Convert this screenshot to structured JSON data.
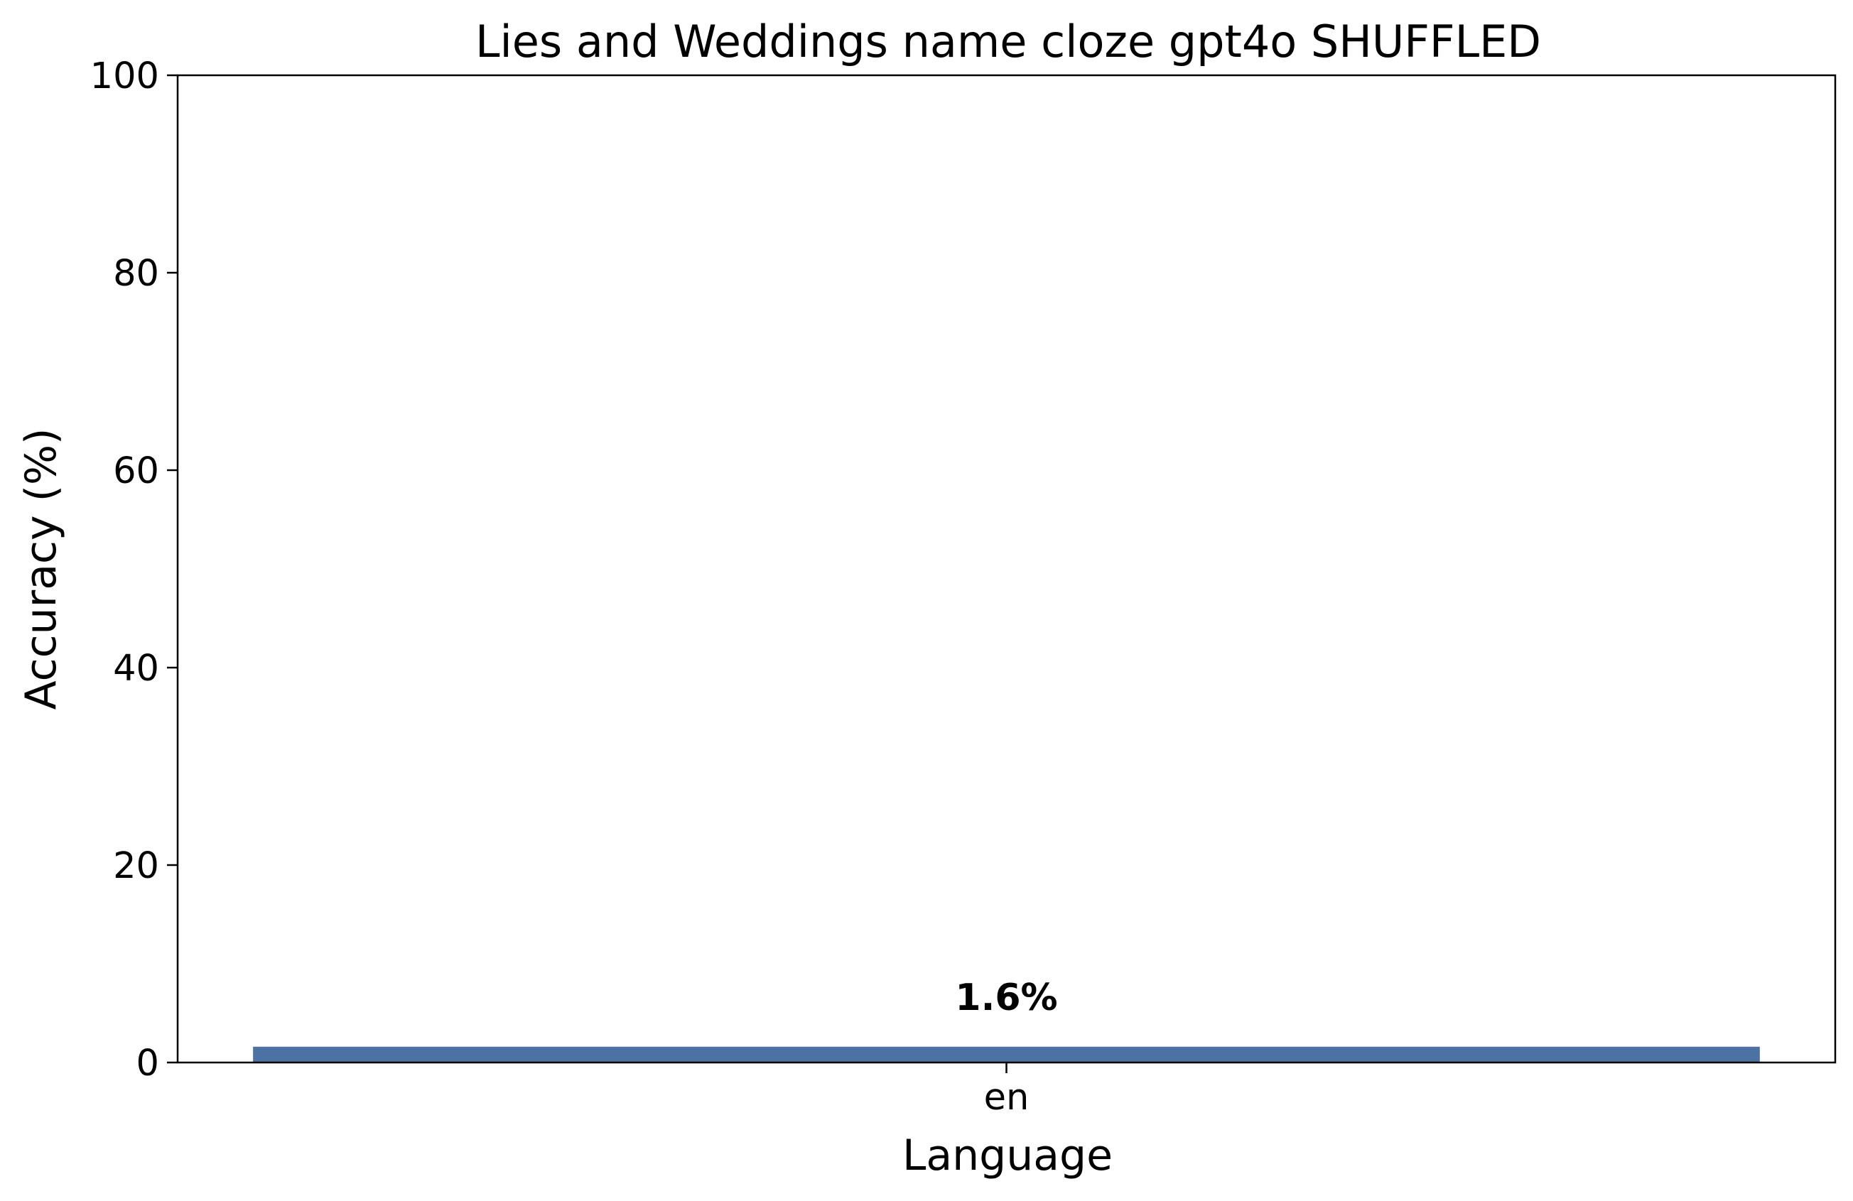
{
  "chart_data": {
    "type": "bar",
    "title": "Lies and Weddings name cloze gpt4o SHUFFLED",
    "xlabel": "Language",
    "ylabel": "Accuracy (%)",
    "categories": [
      "en"
    ],
    "values": [
      1.6
    ],
    "data_labels": [
      "1.6%"
    ],
    "ylim": [
      0,
      100
    ],
    "yticks": [
      0,
      20,
      40,
      60,
      80,
      100
    ],
    "grid": false,
    "legend": "none",
    "bar_color": "#4c72a3"
  }
}
